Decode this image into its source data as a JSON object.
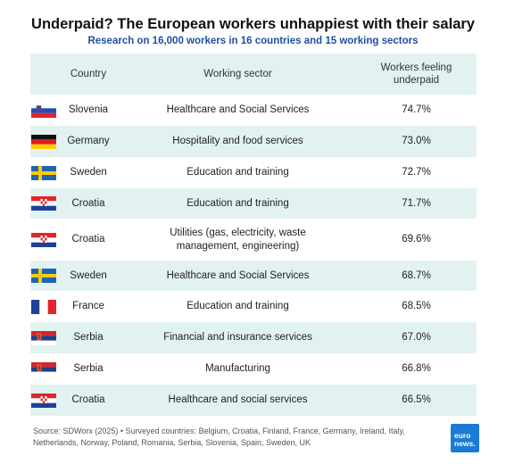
{
  "title": "Underpaid? The European workers unhappiest with their salary",
  "subtitle": "Research on 16,000 workers in 16 countries and 15 working sectors",
  "chart_data": {
    "type": "table",
    "columns": [
      "Country",
      "Working sector",
      "Workers feeling underpaid"
    ],
    "rows": [
      {
        "flag": "slovenia-flag-icon",
        "country": "Slovenia",
        "sector": "Healthcare and Social Services",
        "value": "74.7%"
      },
      {
        "flag": "germany-flag-icon",
        "country": "Germany",
        "sector": "Hospitality and food services",
        "value": "73.0%"
      },
      {
        "flag": "sweden-flag-icon",
        "country": "Sweden",
        "sector": "Education and training",
        "value": "72.7%"
      },
      {
        "flag": "croatia-flag-icon",
        "country": "Croatia",
        "sector": "Education and training",
        "value": "71.7%"
      },
      {
        "flag": "croatia-flag-icon",
        "country": "Croatia",
        "sector": "Utilities (gas, electricity, waste management, engineering)",
        "value": "69.6%"
      },
      {
        "flag": "sweden-flag-icon",
        "country": "Sweden",
        "sector": "Healthcare and Social Services",
        "value": "68.7%"
      },
      {
        "flag": "france-flag-icon",
        "country": "France",
        "sector": "Education and training",
        "value": "68.5%"
      },
      {
        "flag": "serbia-flag-icon",
        "country": "Serbia",
        "sector": "Financial and insurance services",
        "value": "67.0%"
      },
      {
        "flag": "serbia-flag-icon",
        "country": "Serbia",
        "sector": "Manufacturing",
        "value": "66.8%"
      },
      {
        "flag": "croatia-flag-icon",
        "country": "Croatia",
        "sector": "Healthcare and social services",
        "value": "66.5%"
      }
    ]
  },
  "footer": "Source: SDWorx (2025) • Surveyed countries: Belgium, Croatia, Finland, France, Germany, Ireland, Italy, Netherlands, Norway, Poland, Romania, Serbia, Slovenia, Spain, Sweden, UK",
  "logo": {
    "line1": "euro",
    "line2": "news."
  },
  "colors": {
    "header_bg": "#e2f2f1",
    "subtitle": "#1f4fa0",
    "logo": "#1a7bd8"
  }
}
